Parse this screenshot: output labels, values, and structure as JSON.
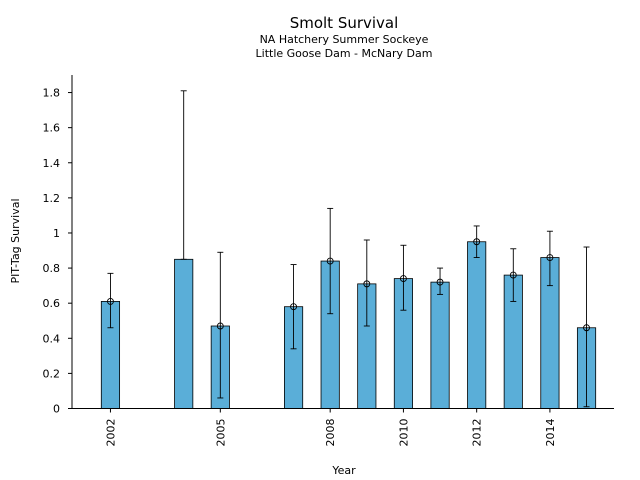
{
  "chart_data": {
    "type": "bar",
    "title": "Smolt Survival",
    "subtitle_lines": [
      "NA Hatchery Summer Sockeye",
      "Little Goose Dam - McNary Dam"
    ],
    "xlabel": "Year",
    "ylabel": "PIT-Tag Survival",
    "xlim": [
      2000.95,
      2015.75
    ],
    "ylim": [
      0,
      1.9
    ],
    "yticks": [
      0,
      0.2,
      0.4,
      0.6,
      0.8,
      1,
      1.2,
      1.4,
      1.6,
      1.8
    ],
    "ytick_labels": [
      "0",
      "0.2",
      "0.4",
      "0.6",
      "0.8",
      "1",
      "1.2",
      "1.4",
      "1.6",
      "1.8"
    ],
    "xticks": [
      2002,
      2005,
      2008,
      2010,
      2012,
      2014
    ],
    "xtick_labels": [
      "2002",
      "2005",
      "2008",
      "2010",
      "2012",
      "2014"
    ],
    "bar_color": "#5aaed8",
    "grid": false,
    "points": [
      {
        "year": 2002,
        "value": 0.61,
        "lower": 0.46,
        "upper": 0.77,
        "marker": true
      },
      {
        "year": 2004,
        "value": 0.85,
        "lower": 0.85,
        "upper": 1.81,
        "marker": false
      },
      {
        "year": 2005,
        "value": 0.47,
        "lower": 0.06,
        "upper": 0.89,
        "marker": true
      },
      {
        "year": 2007,
        "value": 0.58,
        "lower": 0.34,
        "upper": 0.82,
        "marker": true
      },
      {
        "year": 2008,
        "value": 0.84,
        "lower": 0.54,
        "upper": 1.14,
        "marker": true
      },
      {
        "year": 2009,
        "value": 0.71,
        "lower": 0.47,
        "upper": 0.96,
        "marker": true
      },
      {
        "year": 2010,
        "value": 0.74,
        "lower": 0.56,
        "upper": 0.93,
        "marker": true
      },
      {
        "year": 2011,
        "value": 0.72,
        "lower": 0.65,
        "upper": 0.8,
        "marker": true
      },
      {
        "year": 2012,
        "value": 0.95,
        "lower": 0.86,
        "upper": 1.04,
        "marker": true
      },
      {
        "year": 2013,
        "value": 0.76,
        "lower": 0.61,
        "upper": 0.91,
        "marker": true
      },
      {
        "year": 2014,
        "value": 0.86,
        "lower": 0.7,
        "upper": 1.01,
        "marker": true
      },
      {
        "year": 2015,
        "value": 0.46,
        "lower": 0.01,
        "upper": 0.92,
        "marker": true
      }
    ]
  }
}
